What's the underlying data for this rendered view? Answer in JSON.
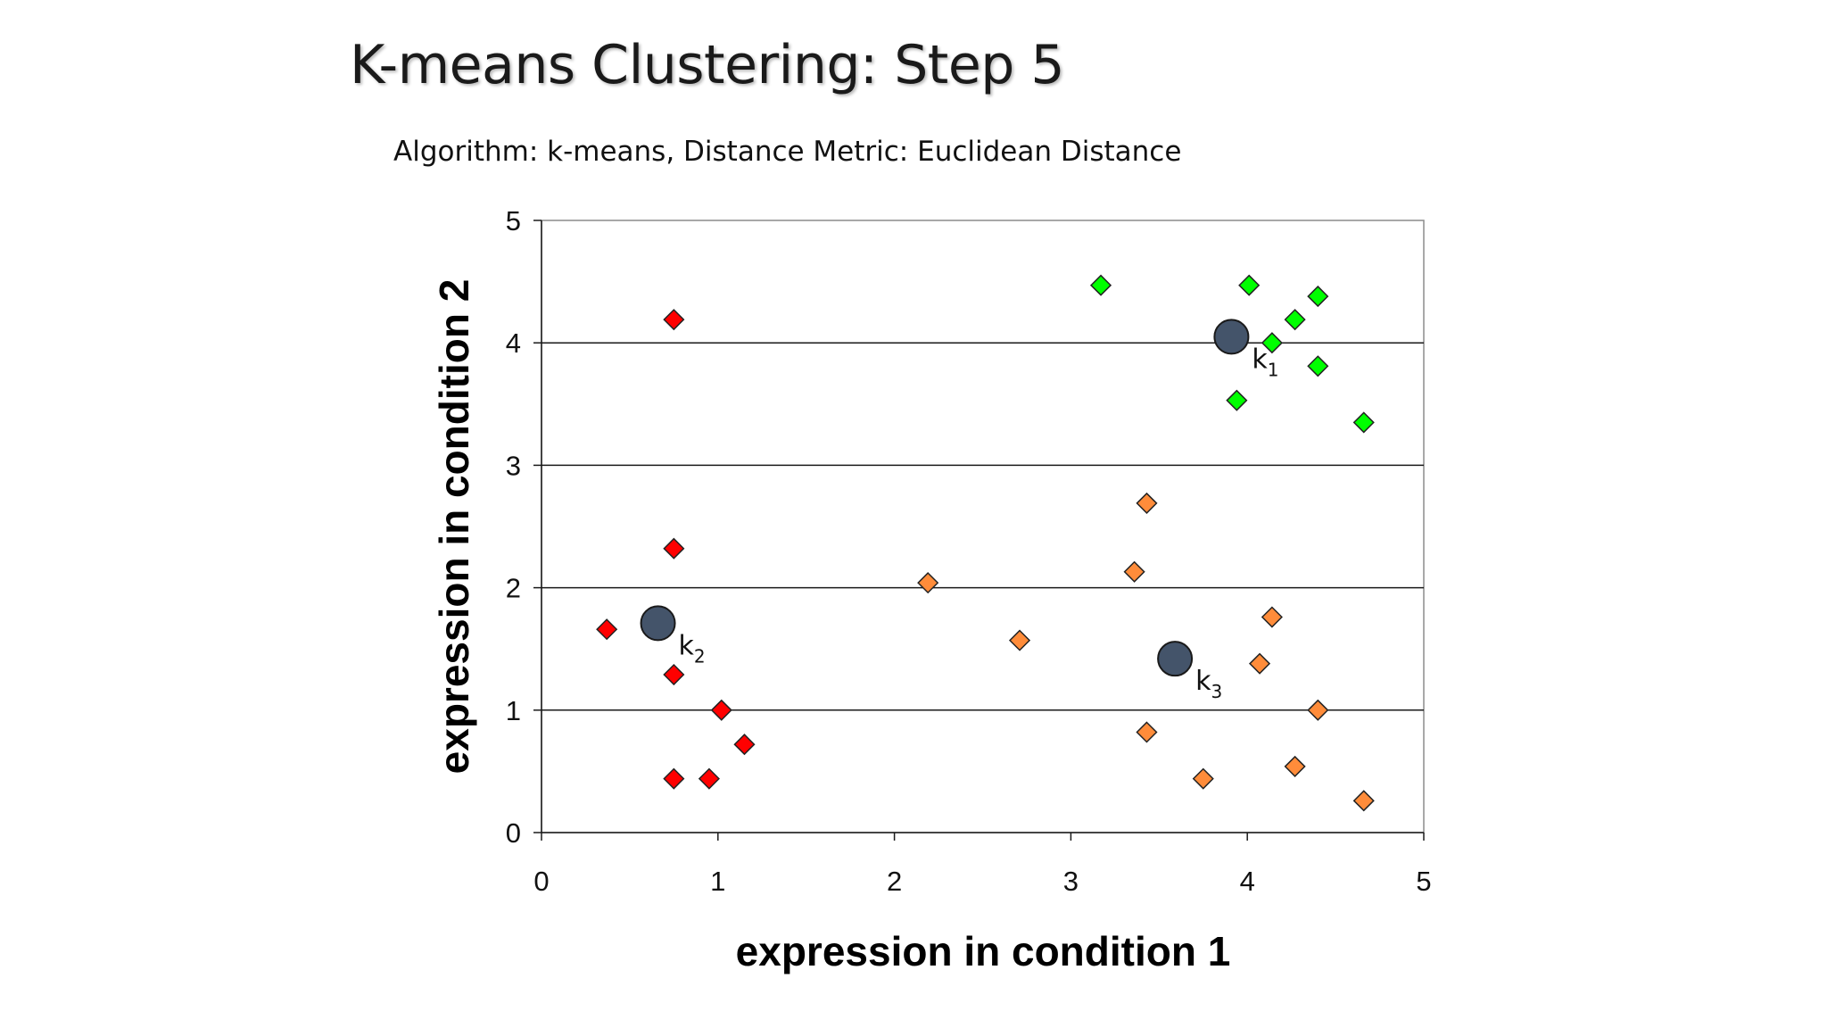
{
  "slide": {
    "title": "K-means Clustering: Step 5",
    "subtitle": "Algorithm: k-means, Distance Metric: Euclidean Distance"
  },
  "chart_data": {
    "type": "scatter",
    "xlabel": "expression in condition 1",
    "ylabel": "expression in condition 2",
    "xlim": [
      0,
      5
    ],
    "ylim": [
      0,
      5
    ],
    "xticks": [
      "0",
      "1",
      "2",
      "3",
      "4",
      "5"
    ],
    "yticks": [
      "0",
      "1",
      "2",
      "3",
      "4",
      "5"
    ],
    "grid": "horizontal",
    "series": [
      {
        "color": "#00ff00",
        "marker": "diamond",
        "points": [
          [
            3.17,
            4.47
          ],
          [
            4.01,
            4.47
          ],
          [
            4.4,
            4.38
          ],
          [
            4.27,
            4.19
          ],
          [
            4.14,
            4.0
          ],
          [
            4.4,
            3.81
          ],
          [
            3.94,
            3.53
          ],
          [
            4.66,
            3.35
          ]
        ]
      },
      {
        "color": "#ff0000",
        "marker": "diamond",
        "points": [
          [
            0.75,
            4.19
          ],
          [
            0.75,
            2.32
          ],
          [
            0.37,
            1.66
          ],
          [
            0.75,
            1.29
          ],
          [
            1.02,
            1.0
          ],
          [
            1.15,
            0.72
          ],
          [
            0.75,
            0.44
          ],
          [
            0.95,
            0.44
          ]
        ]
      },
      {
        "color": "#ff8c3a",
        "marker": "diamond",
        "points": [
          [
            3.43,
            2.69
          ],
          [
            2.19,
            2.04
          ],
          [
            3.36,
            2.13
          ],
          [
            2.71,
            1.57
          ],
          [
            4.14,
            1.76
          ],
          [
            4.07,
            1.38
          ],
          [
            4.4,
            1.0
          ],
          [
            3.43,
            0.82
          ],
          [
            3.75,
            0.44
          ],
          [
            4.27,
            0.54
          ],
          [
            4.66,
            0.26
          ]
        ]
      }
    ],
    "centroids": [
      {
        "label": "k",
        "index": "1",
        "x": 3.91,
        "y": 4.05
      },
      {
        "label": "k",
        "index": "2",
        "x": 0.66,
        "y": 1.71
      },
      {
        "label": "k",
        "index": "3",
        "x": 3.59,
        "y": 1.42
      }
    ],
    "centroid_color": "#44546a"
  }
}
